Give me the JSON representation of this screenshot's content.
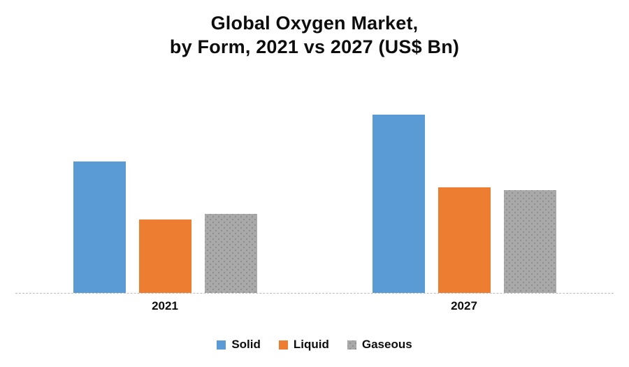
{
  "title": {
    "line1": "Global Oxygen Market,",
    "line2": "by Form, 2021 vs 2027 (US$ Bn)"
  },
  "colors": {
    "solid": "#5B9BD5",
    "liquid": "#ED7D31",
    "gaseous": "#A9A9A9",
    "gaseous_dot": "#8F8F8F",
    "axis_line": "#BDBDBD",
    "text": "#0D0D0D",
    "background": "#FFFFFF"
  },
  "chart_data": {
    "type": "bar",
    "title": "Global Oxygen Market, by Form, 2021 vs 2027 (US$ Bn)",
    "categories": [
      "2021",
      "2027"
    ],
    "series": [
      {
        "name": "Solid",
        "color": "#5B9BD5",
        "pattern": "none",
        "values": [
          18.8,
          25.5
        ]
      },
      {
        "name": "Liquid",
        "color": "#ED7D31",
        "pattern": "none",
        "values": [
          10.5,
          15.1
        ]
      },
      {
        "name": "Gaseous",
        "color": "#A9A9A9",
        "pattern": "dots",
        "values": [
          11.3,
          14.7
        ]
      }
    ],
    "xlabel": "",
    "ylabel": "",
    "ylim": [
      0,
      28
    ],
    "value_axis_visible": false,
    "gridlines": false,
    "values_estimated": true,
    "legend_position": "bottom",
    "legend_entries": [
      "Solid",
      "Liquid",
      "Gaseous"
    ]
  }
}
